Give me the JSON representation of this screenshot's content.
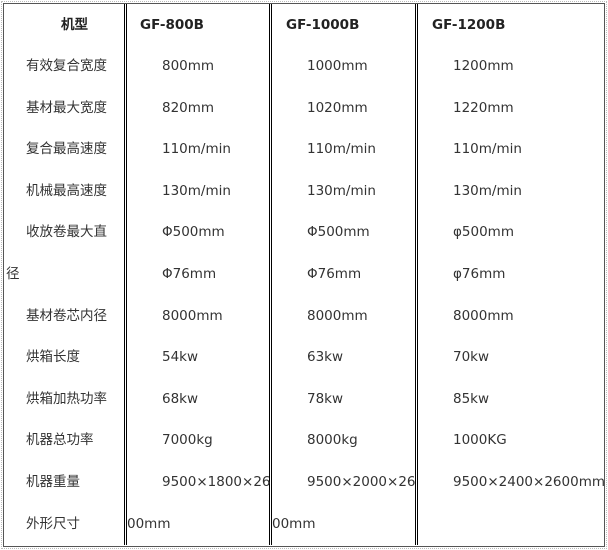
{
  "header": {
    "label": "机型",
    "models": [
      "GF-800B",
      "GF-1000B",
      "GF-1200B"
    ]
  },
  "rows": [
    {
      "label": "有效复合宽度",
      "values": [
        "800mm",
        "1000mm",
        "1200mm"
      ]
    },
    {
      "label": "基材最大宽度",
      "values": [
        "820mm",
        "1020mm",
        "1220mm"
      ]
    },
    {
      "label": "复合最高速度",
      "values": [
        "110m/min",
        "110m/min",
        "110m/min"
      ]
    },
    {
      "label": "机械最高速度",
      "values": [
        "130m/min",
        "130m/min",
        "130m/min"
      ]
    },
    {
      "label": "收放卷最大直",
      "values": [
        "Φ500mm",
        "Φ500mm",
        "φ500mm"
      ]
    },
    {
      "label": "径",
      "values": [
        "Φ76mm",
        "Φ76mm",
        "φ76mm"
      ]
    },
    {
      "label": "基材卷芯内径",
      "values": [
        "8000mm",
        "8000mm",
        "8000mm"
      ]
    },
    {
      "label": "烘箱长度",
      "values": [
        "54kw",
        "63kw",
        "70kw"
      ]
    },
    {
      "label": "烘箱加热功率",
      "values": [
        "68kw",
        "78kw",
        "85kw"
      ]
    },
    {
      "label": "机器总功率",
      "values": [
        "7000kg",
        "8000kg",
        "1000KG"
      ]
    },
    {
      "label": "机器重量",
      "values": [
        "9500×1800×26",
        "9500×2000×26",
        "9500×2400×2600mm"
      ]
    },
    {
      "label": "外形尺寸",
      "values": [
        "00mm",
        "00mm",
        ""
      ]
    }
  ]
}
